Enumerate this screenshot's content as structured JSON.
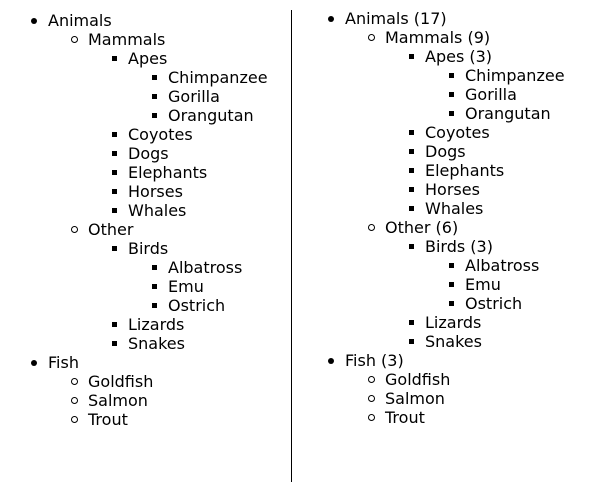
{
  "left_tree": {
    "animals": {
      "label": "Animals",
      "mammals": {
        "label": "Mammals",
        "apes": {
          "label": "Apes",
          "items": [
            "Chimpanzee",
            "Gorilla",
            "Orangutan"
          ]
        },
        "items": [
          "Coyotes",
          "Dogs",
          "Elephants",
          "Horses",
          "Whales"
        ]
      },
      "other": {
        "label": "Other",
        "birds": {
          "label": "Birds",
          "items": [
            "Albatross",
            "Emu",
            "Ostrich"
          ]
        },
        "items": [
          "Lizards",
          "Snakes"
        ]
      }
    },
    "fish": {
      "label": "Fish",
      "items": [
        "Goldfish",
        "Salmon",
        "Trout"
      ]
    }
  },
  "right_tree": {
    "animals": {
      "label": "Animals (17)",
      "mammals": {
        "label": "Mammals (9)",
        "apes": {
          "label": "Apes (3)",
          "items": [
            "Chimpanzee",
            "Gorilla",
            "Orangutan"
          ]
        },
        "items": [
          "Coyotes",
          "Dogs",
          "Elephants",
          "Horses",
          "Whales"
        ]
      },
      "other": {
        "label": "Other (6)",
        "birds": {
          "label": "Birds (3)",
          "items": [
            "Albatross",
            "Emu",
            "Ostrich"
          ]
        },
        "items": [
          "Lizards",
          "Snakes"
        ]
      }
    },
    "fish": {
      "label": "Fish (3)",
      "items": [
        "Goldfish",
        "Salmon",
        "Trout"
      ]
    }
  }
}
